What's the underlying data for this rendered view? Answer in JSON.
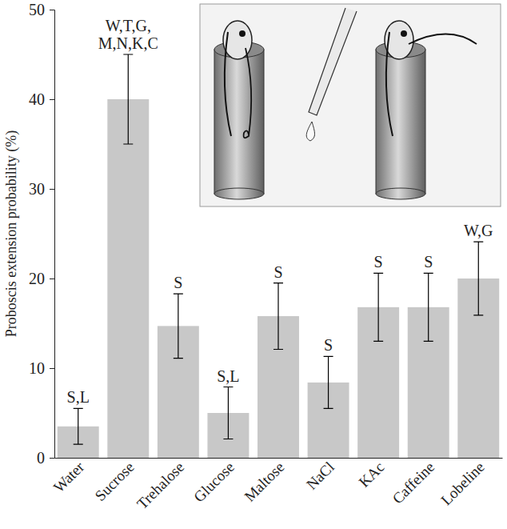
{
  "chart_data": {
    "type": "bar",
    "y_label": "Proboscis extension probability (%)",
    "categories": [
      "Water",
      "Sucrose",
      "Trehalose",
      "Glucose",
      "Maltose",
      "NaCl",
      "KAc",
      "Caffeine",
      "Lobeline"
    ],
    "values": [
      3.5,
      40,
      14.7,
      5,
      15.8,
      8.4,
      16.8,
      16.8,
      20
    ],
    "errors": [
      2,
      5,
      3.6,
      2.9,
      3.7,
      2.9,
      3.8,
      3.8,
      4.1
    ],
    "annotations": [
      [
        "S,L"
      ],
      [
        "W,T,G,",
        "M,N,K,C"
      ],
      [
        "S"
      ],
      [
        "S,L"
      ],
      [
        "S"
      ],
      [
        "S"
      ],
      [
        "S"
      ],
      [
        "S"
      ],
      [
        "W,G"
      ]
    ],
    "color": "#c8c8c8",
    "ylim": [
      0,
      50
    ],
    "yticks": [
      0,
      10,
      20,
      30,
      40,
      50
    ]
  }
}
